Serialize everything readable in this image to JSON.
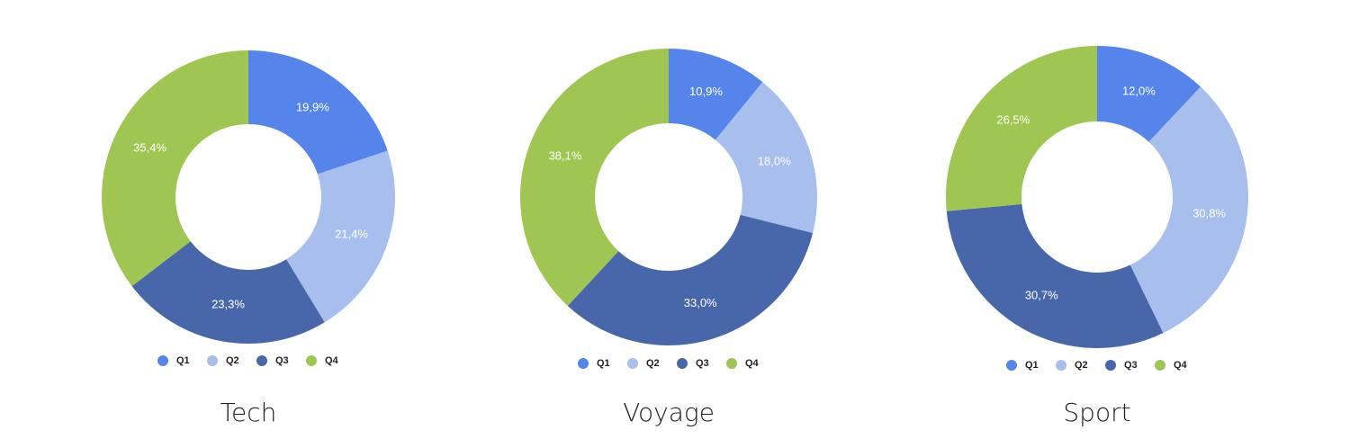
{
  "chart_data": [
    {
      "type": "donut",
      "title": "Tech",
      "categories": [
        "Q1",
        "Q2",
        "Q3",
        "Q4"
      ],
      "values": [
        19.9,
        21.4,
        23.3,
        35.4
      ],
      "value_labels": [
        "19,9%",
        "21,4%",
        "23,3%",
        "35,4%"
      ],
      "colors": [
        "#5585ea",
        "#a8bfee",
        "#4867aa",
        "#9fc552"
      ]
    },
    {
      "type": "donut",
      "title": "Voyage",
      "categories": [
        "Q1",
        "Q2",
        "Q3",
        "Q4"
      ],
      "values": [
        10.9,
        18.0,
        33.0,
        38.1
      ],
      "value_labels": [
        "10,9%",
        "18,0%",
        "33,0%",
        "38,1%"
      ],
      "colors": [
        "#5585ea",
        "#a8bfee",
        "#4867aa",
        "#9fc552"
      ]
    },
    {
      "type": "donut",
      "title": "Sport",
      "categories": [
        "Q1",
        "Q2",
        "Q3",
        "Q4"
      ],
      "values": [
        12.0,
        30.8,
        30.7,
        26.5
      ],
      "value_labels": [
        "12,0%",
        "30,8%",
        "30,7%",
        "26,5%"
      ],
      "colors": [
        "#5585ea",
        "#a8bfee",
        "#4867aa",
        "#9fc552"
      ]
    }
  ]
}
